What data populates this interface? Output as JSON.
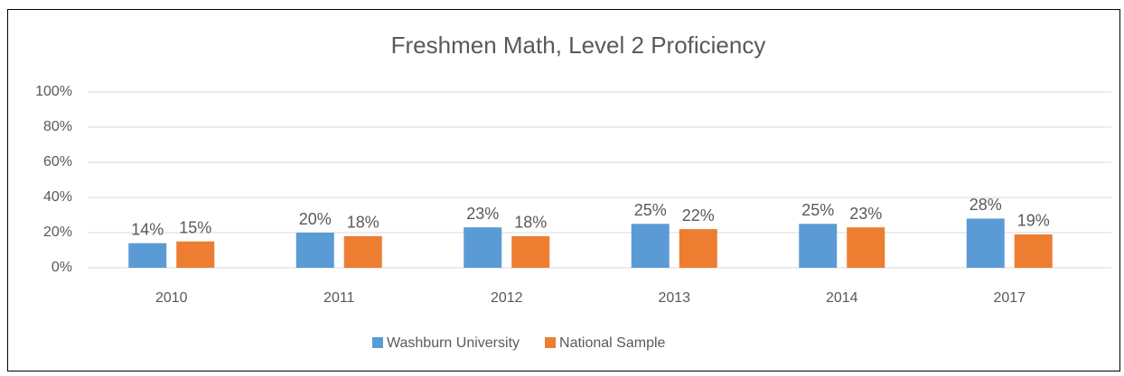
{
  "chart_data": {
    "type": "bar",
    "title": "Freshmen Math, Level 2 Proficiency",
    "categories": [
      "2010",
      "2011",
      "2012",
      "2013",
      "2014",
      "2017"
    ],
    "series": [
      {
        "name": "Washburn University",
        "color": "#5b9bd5",
        "values": [
          14,
          20,
          23,
          25,
          25,
          28
        ],
        "value_labels": [
          "14%",
          "20%",
          "23%",
          "25%",
          "25%",
          "28%"
        ]
      },
      {
        "name": "National Sample",
        "color": "#ed7d31",
        "values": [
          15,
          18,
          18,
          22,
          23,
          19
        ],
        "value_labels": [
          "15%",
          "18%",
          "18%",
          "22%",
          "23%",
          "19%"
        ]
      }
    ],
    "ylim": [
      0,
      100
    ],
    "yticks": [
      {
        "value": 0,
        "label": "0%"
      },
      {
        "value": 20,
        "label": "20%"
      },
      {
        "value": 40,
        "label": "40%"
      },
      {
        "value": 60,
        "label": "60%"
      },
      {
        "value": 80,
        "label": "80%"
      },
      {
        "value": 100,
        "label": "100%"
      }
    ],
    "grid": true,
    "legend": "bottom"
  }
}
